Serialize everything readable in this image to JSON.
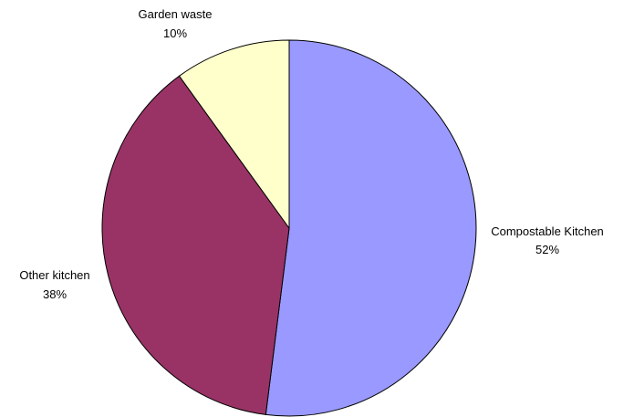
{
  "chart_data": {
    "type": "pie",
    "title": "",
    "start": "12 o'clock",
    "direction": "clockwise",
    "legend": "none",
    "slices": [
      {
        "name": "Compostable Kitchen",
        "value": 52,
        "label": "52%",
        "color": "#9999ff"
      },
      {
        "name": "Other kitchen",
        "value": 38,
        "label": "38%",
        "color": "#993366"
      },
      {
        "name": "Garden waste",
        "value": 10,
        "label": "10%",
        "color": "#ffffcc"
      }
    ]
  }
}
